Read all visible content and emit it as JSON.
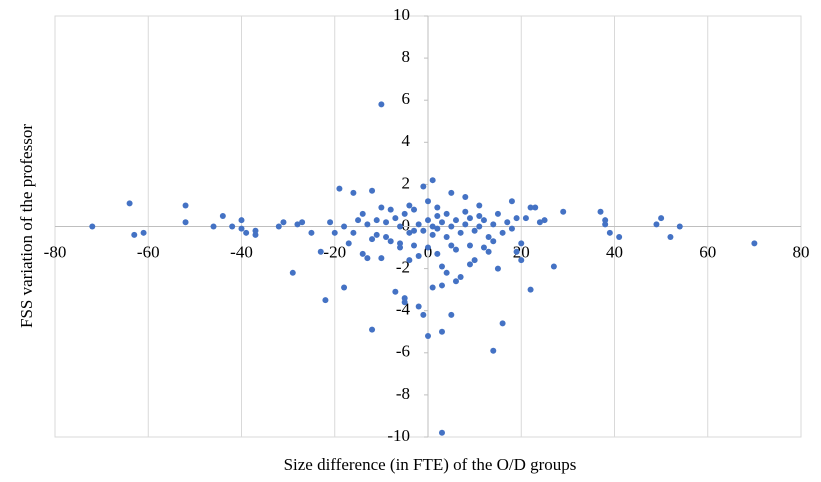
{
  "chart_data": {
    "type": "scatter",
    "x_label": "Size difference (in FTE) of the O/D groups",
    "y_label": "FSS variation of the professor",
    "color": "#4472c4",
    "grid": true,
    "xlim": [
      -80,
      80
    ],
    "xticks": [
      -80,
      -60,
      -40,
      -20,
      0,
      20,
      40,
      60,
      80
    ],
    "ylim": [
      -10,
      10
    ],
    "yticks": [
      -10,
      -8,
      -6,
      -4,
      -2,
      0,
      2,
      4,
      6,
      8,
      10
    ],
    "x": [
      -72,
      -64,
      -63,
      -61,
      -52,
      -52,
      -46,
      -44,
      -42,
      -40,
      -40,
      -39,
      -37,
      -37,
      -32,
      -31,
      -29,
      -28,
      -27,
      -25,
      -23,
      -22,
      -21,
      -20,
      -19,
      -18,
      -16,
      -14,
      -13,
      -12,
      -12,
      -10,
      -11,
      -10,
      -9,
      -8,
      -7,
      -6,
      -5,
      -5,
      -4,
      -4,
      -3,
      -2,
      -2,
      -1,
      -1,
      0,
      0,
      1,
      1,
      2,
      2,
      3,
      3,
      3,
      3,
      4,
      5,
      5,
      6,
      6,
      7,
      8,
      8,
      9,
      10,
      11,
      12,
      13,
      14,
      15,
      16,
      18,
      19,
      20,
      20,
      21,
      22,
      22,
      23,
      24,
      25,
      27,
      29,
      37,
      38,
      38,
      39,
      41,
      49,
      50,
      52,
      54,
      70,
      -18,
      -16,
      -15,
      -13,
      -11,
      -9,
      -8,
      -7,
      -6,
      -5,
      -4,
      -3,
      -2,
      -1,
      0,
      1,
      1,
      2,
      3,
      4,
      4,
      5,
      6,
      7,
      8,
      9,
      10,
      11,
      12,
      13,
      14,
      15,
      16,
      17,
      18,
      19,
      -17,
      -14,
      -12,
      -10,
      -6,
      -3,
      0,
      2,
      5,
      9,
      11,
      14
    ],
    "values": [
      0,
      1.1,
      -0.4,
      -0.3,
      1.0,
      0.2,
      0,
      0.5,
      0,
      0.3,
      -0.1,
      -0.3,
      -0.2,
      -0.4,
      0,
      0.2,
      -2.2,
      0.1,
      0.2,
      -0.3,
      -1.2,
      -3.5,
      0.2,
      -0.3,
      1.8,
      -2.9,
      1.6,
      -1.3,
      -1.5,
      1.7,
      -4.9,
      5.8,
      0.3,
      -1.5,
      -0.5,
      0.8,
      -3.1,
      -1.0,
      -3.6,
      -3.4,
      1.0,
      -1.6,
      -0.2,
      -3.8,
      -1.4,
      1.9,
      -4.2,
      -5.2,
      -1.0,
      2.2,
      -2.9,
      0.5,
      -1.3,
      -2.8,
      -9.8,
      -1.9,
      -5.0,
      -2.2,
      1.6,
      -4.2,
      -2.6,
      -1.1,
      -2.4,
      1.4,
      0.7,
      -1.8,
      -1.6,
      0.5,
      -1.0,
      -1.2,
      -5.9,
      -2.0,
      -4.6,
      1.2,
      -1.2,
      -0.8,
      -1.6,
      0.4,
      0.9,
      -3.0,
      0.9,
      0.2,
      0.3,
      -1.9,
      0.7,
      0.7,
      0.3,
      0.1,
      -0.3,
      -0.5,
      0.1,
      0.4,
      -0.5,
      0,
      -0.8,
      0,
      -0.3,
      0.3,
      0.1,
      -0.4,
      0.2,
      -0.7,
      0.4,
      0,
      0.6,
      -0.3,
      0.8,
      0.1,
      -0.2,
      0.3,
      -0.4,
      0,
      -0.1,
      0.2,
      -0.5,
      0.6,
      0,
      0.3,
      -0.3,
      0.1,
      0.4,
      -0.2,
      0,
      0.3,
      -0.5,
      0.1,
      0.6,
      -0.3,
      0.2,
      -0.1,
      0.4,
      -0.8,
      0.6,
      -0.6,
      0.9,
      -0.8,
      -0.9,
      1.2,
      0.9,
      -0.9,
      -0.9,
      1.0,
      -0.7
    ]
  }
}
